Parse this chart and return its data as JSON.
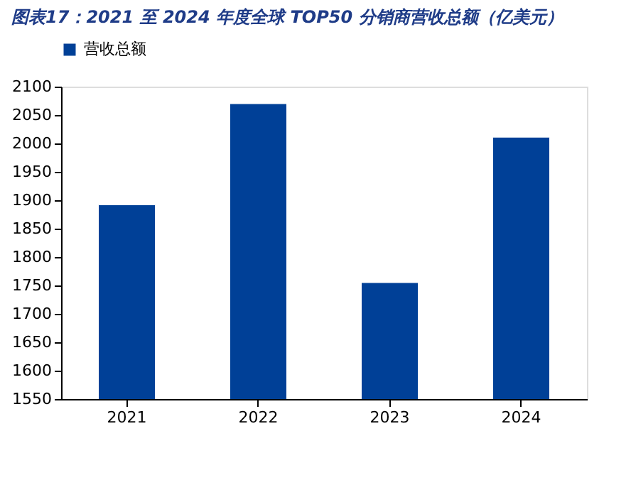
{
  "chart_data": {
    "type": "bar",
    "title": "图表17：2021 至 2024 年度全球 TOP50 分销商营收总额（亿美元）",
    "categories": [
      "2021",
      "2022",
      "2023",
      "2024"
    ],
    "series": [
      {
        "name": "营收总额",
        "color": "#004097",
        "values": [
          1892,
          2070,
          1755,
          2011
        ]
      }
    ],
    "ylim": [
      1550,
      2100
    ],
    "yticks": [
      1550,
      1600,
      1650,
      1700,
      1750,
      1800,
      1850,
      1900,
      1950,
      2000,
      2050,
      2100
    ],
    "grid": false,
    "legend": "top"
  }
}
